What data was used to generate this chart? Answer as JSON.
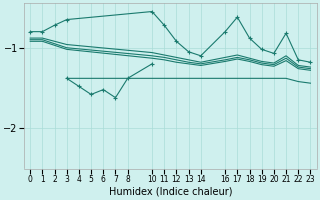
{
  "xlabel": "Humidex (Indice chaleur)",
  "bg_color": "#cff0ee",
  "line_color": "#1a7a6e",
  "grid_color": "#aaddd8",
  "xlim": [
    -0.5,
    23.5
  ],
  "ylim": [
    -2.5,
    -0.45
  ],
  "yticks": [
    -2,
    -1
  ],
  "xticks": [
    0,
    1,
    2,
    3,
    4,
    5,
    6,
    7,
    8,
    10,
    11,
    12,
    13,
    14,
    16,
    17,
    18,
    19,
    20,
    21,
    22,
    23
  ],
  "line_upper": {
    "x": [
      0,
      1,
      2,
      3,
      10,
      11,
      12,
      13,
      14,
      16,
      17,
      18,
      19,
      20,
      21,
      22,
      23
    ],
    "y": [
      -0.8,
      -0.8,
      -0.72,
      -0.65,
      -0.55,
      -0.72,
      -0.92,
      -1.05,
      -1.1,
      -0.8,
      -0.62,
      -0.88,
      -1.02,
      -1.07,
      -0.82,
      -1.15,
      -1.18
    ]
  },
  "line_mid1": {
    "x": [
      0,
      1,
      2,
      3,
      10,
      11,
      12,
      13,
      14,
      16,
      17,
      18,
      19,
      20,
      21,
      22,
      23
    ],
    "y": [
      -0.88,
      -0.88,
      -0.92,
      -0.96,
      -1.06,
      -1.09,
      -1.12,
      -1.15,
      -1.18,
      -1.12,
      -1.09,
      -1.13,
      -1.17,
      -1.19,
      -1.1,
      -1.22,
      -1.24
    ]
  },
  "line_mid2": {
    "x": [
      0,
      1,
      2,
      3,
      10,
      11,
      12,
      13,
      14,
      16,
      17,
      18,
      19,
      20,
      21,
      22,
      23
    ],
    "y": [
      -0.9,
      -0.9,
      -0.95,
      -1.0,
      -1.1,
      -1.12,
      -1.15,
      -1.18,
      -1.2,
      -1.15,
      -1.12,
      -1.15,
      -1.19,
      -1.21,
      -1.13,
      -1.24,
      -1.26
    ]
  },
  "line_mid3": {
    "x": [
      0,
      1,
      2,
      3,
      10,
      11,
      12,
      13,
      14,
      16,
      17,
      18,
      19,
      20,
      21,
      22,
      23
    ],
    "y": [
      -0.92,
      -0.92,
      -0.97,
      -1.02,
      -1.13,
      -1.15,
      -1.18,
      -1.2,
      -1.22,
      -1.17,
      -1.14,
      -1.17,
      -1.21,
      -1.23,
      -1.16,
      -1.26,
      -1.28
    ]
  },
  "line_flat": {
    "x": [
      3,
      4,
      8,
      10,
      11,
      12,
      13,
      14,
      16,
      17,
      18,
      19,
      20,
      21,
      22,
      23
    ],
    "y": [
      -1.38,
      -1.38,
      -1.38,
      -1.38,
      -1.38,
      -1.38,
      -1.38,
      -1.38,
      -1.38,
      -1.38,
      -1.38,
      -1.38,
      -1.38,
      -1.38,
      -1.42,
      -1.44
    ]
  },
  "line_zigzag": {
    "x": [
      3,
      4,
      5,
      6,
      7,
      8,
      10
    ],
    "y": [
      -1.38,
      -1.48,
      -1.58,
      -1.52,
      -1.62,
      -1.38,
      -1.2
    ]
  }
}
